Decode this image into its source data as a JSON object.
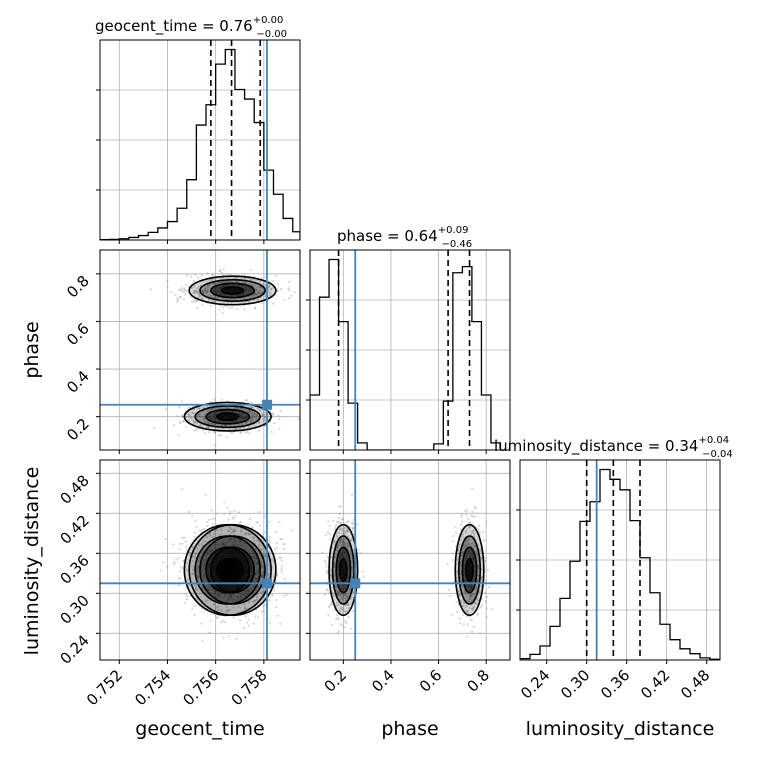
{
  "chart_data": {
    "type": "corner",
    "parameters": [
      "geocent_time",
      "phase",
      "luminosity_distance"
    ],
    "truths": {
      "geocent_time": 0.75813,
      "phase": 0.25,
      "luminosity_distance": 0.315
    },
    "axes": {
      "geocent_time": {
        "range": [
          0.7512,
          0.7595
        ],
        "ticks": [
          0.752,
          0.754,
          0.756,
          0.758
        ],
        "tick_labels": [
          "0.752",
          "0.754",
          "0.756",
          "0.758"
        ]
      },
      "phase": {
        "range": [
          0.06,
          0.9
        ],
        "ticks": [
          0.2,
          0.4,
          0.6,
          0.8
        ],
        "tick_labels": [
          "0.2",
          "0.4",
          "0.6",
          "0.8"
        ]
      },
      "luminosity_distance": {
        "range": [
          0.2,
          0.5
        ],
        "ticks": [
          0.24,
          0.3,
          0.36,
          0.42,
          0.48
        ],
        "tick_labels": [
          "0.24",
          "0.30",
          "0.36",
          "0.42",
          "0.48"
        ]
      }
    },
    "histograms": {
      "geocent_time": {
        "edges": [
          0.7512,
          0.7516,
          0.752,
          0.7524,
          0.7528,
          0.7532,
          0.7536,
          0.754,
          0.7544,
          0.7548,
          0.7552,
          0.7556,
          0.756,
          0.7564,
          0.7568,
          0.7572,
          0.7576,
          0.758,
          0.7584,
          0.7588,
          0.7592,
          0.7595
        ],
        "counts": [
          0.5,
          1,
          2,
          4,
          7,
          12,
          19,
          29,
          50,
          95,
          181,
          213,
          277,
          300,
          237,
          222,
          185,
          110,
          72,
          34,
          13
        ]
      },
      "phase": {
        "edges": [
          0.06,
          0.1,
          0.14,
          0.18,
          0.22,
          0.26,
          0.3,
          0.34,
          0.38,
          0.42,
          0.46,
          0.5,
          0.54,
          0.58,
          0.62,
          0.66,
          0.7,
          0.74,
          0.78,
          0.82,
          0.86,
          0.9
        ],
        "counts": [
          54,
          150,
          187,
          126,
          46,
          7,
          0,
          0,
          0,
          0,
          0,
          0,
          0,
          6,
          48,
          174,
          180,
          126,
          54,
          7,
          0
        ]
      },
      "luminosity_distance": {
        "edges": [
          0.2,
          0.215,
          0.23,
          0.245,
          0.26,
          0.275,
          0.29,
          0.305,
          0.32,
          0.335,
          0.35,
          0.365,
          0.38,
          0.395,
          0.41,
          0.425,
          0.44,
          0.455,
          0.47,
          0.485,
          0.5
        ],
        "counts": [
          2,
          8,
          20,
          48,
          88,
          141,
          198,
          226,
          272,
          258,
          243,
          199,
          146,
          96,
          51,
          29,
          16,
          9,
          3,
          1
        ]
      }
    },
    "quantiles": {
      "geocent_time": [
        0.7558,
        0.75666,
        0.75785
      ],
      "phase": [
        0.18,
        0.64,
        0.73
      ],
      "luminosity_distance": [
        0.3,
        0.34,
        0.38
      ]
    },
    "posterior_modes": [
      {
        "weight": 0.5,
        "geocent_time_mean": 0.7565,
        "geocent_time_sd": 0.0009,
        "phase_mean": 0.2,
        "phase_sd": 0.03,
        "luminosity_distance_mean": 0.335,
        "luminosity_distance_sd": 0.034
      },
      {
        "weight": 0.5,
        "geocent_time_mean": 0.7567,
        "geocent_time_sd": 0.0009,
        "phase_mean": 0.73,
        "phase_sd": 0.03,
        "luminosity_distance_mean": 0.335,
        "luminosity_distance_sd": 0.034
      }
    ],
    "titles": {
      "geocent_time": {
        "main": "geocent_time = 0.76",
        "sup": "+0.00",
        "sub": "−0.00"
      },
      "phase": {
        "main": "phase = 0.64",
        "sup": "+0.09",
        "sub": "−0.46"
      },
      "luminosity_distance": {
        "main": "luminosity_distance = 0.34",
        "sup": "+0.04",
        "sub": "−0.04"
      }
    },
    "ylabels": {
      "phase": "phase",
      "luminosity_distance": "luminosity_distance"
    },
    "xlabels": {
      "geocent_time": "geocent_time",
      "phase": "phase",
      "luminosity_distance": "luminosity_distance"
    },
    "grid": true,
    "colors": {
      "truth": "#4682b4",
      "hist": "#000000",
      "grid": "#b0b0b0",
      "density": "#000000"
    }
  }
}
